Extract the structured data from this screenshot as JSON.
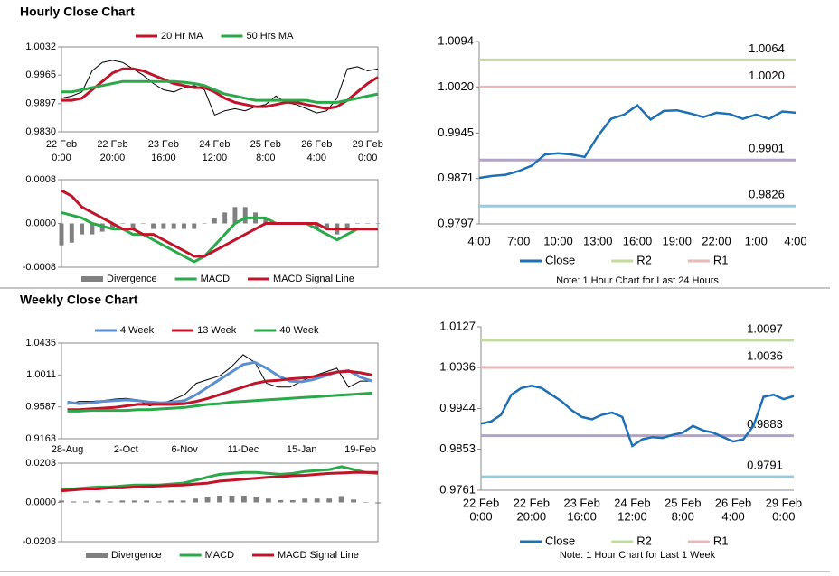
{
  "titles": [
    "Hourly Close Chart",
    "Weekly Close Chart"
  ],
  "chart_data": [
    {
      "type": "line",
      "values": [
        0.991,
        0.9915,
        0.9925,
        0.9975,
        0.9995,
        1.0,
        0.9995,
        0.998,
        0.9965,
        0.9945,
        0.993,
        0.9925,
        0.9935,
        0.994,
        0.993,
        0.987,
        0.988,
        0.9885,
        0.988,
        0.989,
        0.9895,
        0.9915,
        0.99,
        0.9895,
        0.9885,
        0.9875,
        0.988,
        0.991,
        0.998,
        0.9985,
        0.9975,
        0.998
      ],
      "color": "#000000",
      "categories": [
        [
          "22 Feb",
          "0:00"
        ],
        null,
        null,
        null,
        null,
        [
          "22 Feb",
          "20:00"
        ],
        null,
        null,
        null,
        null,
        [
          "23 Feb",
          "16:00"
        ],
        null,
        null,
        null,
        null,
        [
          "24 Feb",
          "12:00"
        ],
        null,
        null,
        null,
        null,
        [
          "25 Feb",
          "8:00"
        ],
        null,
        null,
        null,
        null,
        [
          "26 Feb",
          "4:00"
        ],
        null,
        null,
        null,
        null,
        [
          "29 Feb",
          "0:00"
        ],
        null
      ],
      "series": [
        {
          "name": "20 Hr MA",
          "color": "#c0142b",
          "values": [
            0.9905,
            0.9905,
            0.991,
            0.993,
            0.995,
            0.997,
            0.998,
            0.998,
            0.9975,
            0.9965,
            0.9955,
            0.9945,
            0.994,
            0.9935,
            0.9935,
            0.9925,
            0.991,
            0.99,
            0.9895,
            0.989,
            0.989,
            0.9895,
            0.99,
            0.99,
            0.9895,
            0.989,
            0.9885,
            0.989,
            0.9905,
            0.9925,
            0.9945,
            0.996
          ]
        },
        {
          "name": "50 Hrs MA",
          "color": "#2aa84a",
          "values": [
            0.9925,
            0.9925,
            0.993,
            0.9935,
            0.994,
            0.9945,
            0.995,
            0.995,
            0.995,
            0.995,
            0.995,
            0.995,
            0.9948,
            0.9945,
            0.994,
            0.993,
            0.992,
            0.9915,
            0.991,
            0.9905,
            0.9905,
            0.9905,
            0.9905,
            0.9905,
            0.9905,
            0.99,
            0.99,
            0.99,
            0.9905,
            0.991,
            0.9915,
            0.992
          ]
        }
      ],
      "ylim": [
        0.983,
        1.0032
      ],
      "yticks": [
        1.0032,
        0.9965,
        0.9897,
        {
          "value": 0.983,
          "label": "0.9830"
        }
      ]
    },
    {
      "type": "line",
      "series": [
        {
          "name": "Divergence",
          "color": "#808080",
          "style": "bar",
          "values": [
            -0.0004,
            -0.00035,
            -0.0002,
            -0.0002,
            -0.00015,
            -0.0001,
            0,
            -0.0001,
            0,
            -0.0001,
            -0.0001,
            -0.0001,
            -0.0001,
            -0.0001,
            0,
            0.0001,
            0.0002,
            0.0003,
            0.0003,
            0.0002,
            0.0001,
            0,
            0,
            0,
            0,
            -0.0001,
            -0.0001,
            -0.0002,
            -0.0001,
            0,
            0,
            0
          ]
        },
        {
          "name": "MACD",
          "color": "#2aa84a",
          "values": [
            0.0002,
            0.00015,
            0.0001,
            0,
            -5e-05,
            -0.0001,
            -0.0001,
            -0.0002,
            -0.0002,
            -0.0003,
            -0.0004,
            -0.0005,
            -0.0006,
            -0.0007,
            -0.0006,
            -0.0004,
            -0.0002,
            0,
            0.0001,
            0.0001,
            0.0001,
            0,
            0,
            0,
            0,
            -0.0001,
            -0.0002,
            -0.0003,
            -0.0002,
            -0.0001,
            -0.0001,
            -0.0001
          ]
        },
        {
          "name": "MACD Signal Line",
          "color": "#c0142b",
          "values": [
            0.0006,
            0.0005,
            0.0003,
            0.0002,
            0.0001,
            0,
            -0.0001,
            -0.0001,
            -0.0002,
            -0.0002,
            -0.0003,
            -0.0004,
            -0.0005,
            -0.0006,
            -0.0006,
            -0.0005,
            -0.0004,
            -0.0003,
            -0.0002,
            -0.0001,
            0,
            0,
            0,
            0,
            0,
            0,
            -0.0001,
            -0.0001,
            -0.0001,
            -0.0001,
            -0.0001,
            -0.0001
          ]
        }
      ],
      "ylim": [
        -0.0008,
        0.0008
      ],
      "yticks": [
        0.0008,
        {
          "value": 0,
          "label": "0.0000"
        },
        -0.0008
      ]
    },
    {
      "type": "line",
      "note": "Note: 1 Hour Chart for Last 24 Hours",
      "categories": [
        "4:00",
        null,
        null,
        "7:00",
        null,
        null,
        "10:00",
        null,
        null,
        "13:00",
        null,
        null,
        "16:00",
        null,
        null,
        "19:00",
        null,
        null,
        "22:00",
        null,
        null,
        "1:00",
        null,
        null,
        "4:00"
      ],
      "series": [
        {
          "name": "Close",
          "color": "#1f6fb5",
          "values": [
            0.9872,
            0.9875,
            0.9877,
            0.9883,
            0.9892,
            0.991,
            0.9912,
            0.991,
            0.9906,
            0.994,
            0.9968,
            0.9975,
            0.999,
            0.9967,
            0.9981,
            0.9982,
            0.9977,
            0.9971,
            0.9978,
            0.9976,
            0.9968,
            0.9975,
            0.9968,
            0.998,
            0.9978
          ]
        },
        {
          "name": "R2",
          "color": "#c3dc9b",
          "level": 1.0064
        },
        {
          "name": "R1",
          "color": "#e6b8b7",
          "level": {
            "value": 1.002,
            "label": "1.0020"
          }
        }
      ],
      "levels": [
        {
          "value": 0.9901,
          "color": "#b3a2c7"
        },
        {
          "value": 0.9826,
          "color": "#93cddd"
        }
      ],
      "ylim": [
        0.9797,
        1.0094
      ],
      "yticks": [
        1.0094,
        {
          "value": 1.002,
          "label": "1.0020"
        },
        0.9945,
        0.9871,
        0.9797
      ]
    },
    {
      "type": "line",
      "values": [
        0.962,
        0.966,
        0.966,
        0.967,
        0.969,
        0.97,
        0.968,
        0.96,
        0.963,
        0.968,
        0.975,
        0.99,
        0.995,
        1.0,
        1.012,
        1.028,
        1.018,
        0.99,
        0.985,
        0.985,
        0.993,
        1.0,
        1.005,
        1.01,
        0.985,
        0.993,
        0.993
      ],
      "color": "#000000",
      "categories": [
        "28-Aug",
        null,
        null,
        null,
        null,
        "2-Oct",
        null,
        null,
        null,
        null,
        "6-Nov",
        null,
        null,
        null,
        null,
        "11-Dec",
        null,
        null,
        null,
        null,
        "15-Jan",
        null,
        null,
        null,
        null,
        "19-Feb",
        null
      ],
      "series": [
        {
          "name": "4 Week",
          "color": "#5b8fcf",
          "values": [
            0.965,
            0.963,
            0.964,
            0.966,
            0.967,
            0.968,
            0.967,
            0.965,
            0.964,
            0.965,
            0.967,
            0.975,
            0.985,
            0.995,
            1.005,
            1.015,
            1.018,
            1.01,
            1.0,
            0.993,
            0.992,
            0.995,
            1.0,
            1.005,
            1.007,
            0.998,
            0.993
          ]
        },
        {
          "name": "13 Week",
          "color": "#c0142b",
          "values": [
            0.955,
            0.955,
            0.956,
            0.957,
            0.958,
            0.96,
            0.962,
            0.962,
            0.962,
            0.962,
            0.963,
            0.966,
            0.97,
            0.975,
            0.98,
            0.985,
            0.99,
            0.993,
            0.994,
            0.996,
            0.997,
            0.999,
            1.002,
            1.005,
            1.006,
            1.004,
            1.001
          ]
        },
        {
          "name": "40 Week",
          "color": "#2aa84a",
          "values": [
            0.953,
            0.953,
            0.954,
            0.954,
            0.954,
            0.954,
            0.955,
            0.955,
            0.956,
            0.957,
            0.958,
            0.96,
            0.962,
            0.963,
            0.965,
            0.966,
            0.967,
            0.968,
            0.969,
            0.97,
            0.971,
            0.972,
            0.973,
            0.974,
            0.975,
            0.976,
            0.977
          ]
        }
      ],
      "ylim": [
        0.9163,
        1.0435
      ],
      "yticks": [
        1.0435,
        1.0011,
        0.9587,
        0.9163
      ]
    },
    {
      "type": "line",
      "series": [
        {
          "name": "Divergence",
          "color": "#808080",
          "style": "bar",
          "values": [
            0.001,
            0.0005,
            0.0005,
            0.001,
            0.0005,
            0.001,
            0.001,
            0.001,
            0.0005,
            0.001,
            0.001,
            0.002,
            0.003,
            0.0035,
            0.0035,
            0.0035,
            0.003,
            0.002,
            0.0012,
            0.0012,
            0.002,
            0.002,
            0.002,
            0.0033,
            0.0015,
            0,
            -0.0005
          ]
        },
        {
          "name": "MACD",
          "color": "#2aa84a",
          "values": [
            0.007,
            0.007,
            0.0075,
            0.008,
            0.008,
            0.0085,
            0.009,
            0.009,
            0.009,
            0.0095,
            0.01,
            0.0115,
            0.013,
            0.0145,
            0.015,
            0.0155,
            0.0155,
            0.015,
            0.0145,
            0.015,
            0.016,
            0.0165,
            0.017,
            0.0185,
            0.017,
            0.0155,
            0.015
          ]
        },
        {
          "name": "MACD Signal Line",
          "color": "#c0142b",
          "values": [
            0.006,
            0.0065,
            0.007,
            0.007,
            0.0075,
            0.0075,
            0.008,
            0.0082,
            0.0085,
            0.0088,
            0.009,
            0.0095,
            0.01,
            0.011,
            0.0115,
            0.012,
            0.0125,
            0.013,
            0.0133,
            0.0138,
            0.014,
            0.0145,
            0.015,
            0.0152,
            0.0155,
            0.0155,
            0.0155
          ]
        }
      ],
      "ylim": [
        -0.0203,
        0.0203
      ],
      "yticks": [
        0.0203,
        {
          "value": 0,
          "label": "0.0000"
        },
        -0.0203
      ]
    },
    {
      "type": "line",
      "note": "Note: 1 Hour Chart for Last 1 Week",
      "categories": [
        [
          "22 Feb",
          "0:00"
        ],
        null,
        null,
        null,
        null,
        [
          "22 Feb",
          "20:00"
        ],
        null,
        null,
        null,
        null,
        [
          "23 Feb",
          "16:00"
        ],
        null,
        null,
        null,
        null,
        [
          "24 Feb",
          "12:00"
        ],
        null,
        null,
        null,
        null,
        [
          "25 Feb",
          "8:00"
        ],
        null,
        null,
        null,
        null,
        [
          "26 Feb",
          "4:00"
        ],
        null,
        null,
        null,
        null,
        [
          "29 Feb",
          "0:00"
        ],
        null
      ],
      "series": [
        {
          "name": "Close",
          "color": "#1f6fb5",
          "values": [
            0.991,
            0.9915,
            0.993,
            0.9975,
            0.999,
            0.9995,
            0.999,
            0.9975,
            0.996,
            0.994,
            0.9925,
            0.992,
            0.993,
            0.9935,
            0.9925,
            0.986,
            0.9875,
            0.988,
            0.9878,
            0.9885,
            0.989,
            0.9905,
            0.9895,
            0.989,
            0.988,
            0.987,
            0.9875,
            0.9905,
            0.997,
            0.9975,
            0.9965,
            0.9972
          ]
        },
        {
          "name": "R2",
          "color": "#c3dc9b",
          "level": 1.0097
        },
        {
          "name": "R1",
          "color": "#e6b8b7",
          "level": 1.0036
        }
      ],
      "levels": [
        {
          "value": 0.9883,
          "color": "#b3a2c7"
        },
        {
          "value": 0.9791,
          "color": "#93cddd"
        }
      ],
      "ylim": [
        0.9761,
        1.0127
      ],
      "yticks": [
        1.0127,
        1.0036,
        0.9944,
        0.9853,
        0.9761
      ]
    }
  ]
}
